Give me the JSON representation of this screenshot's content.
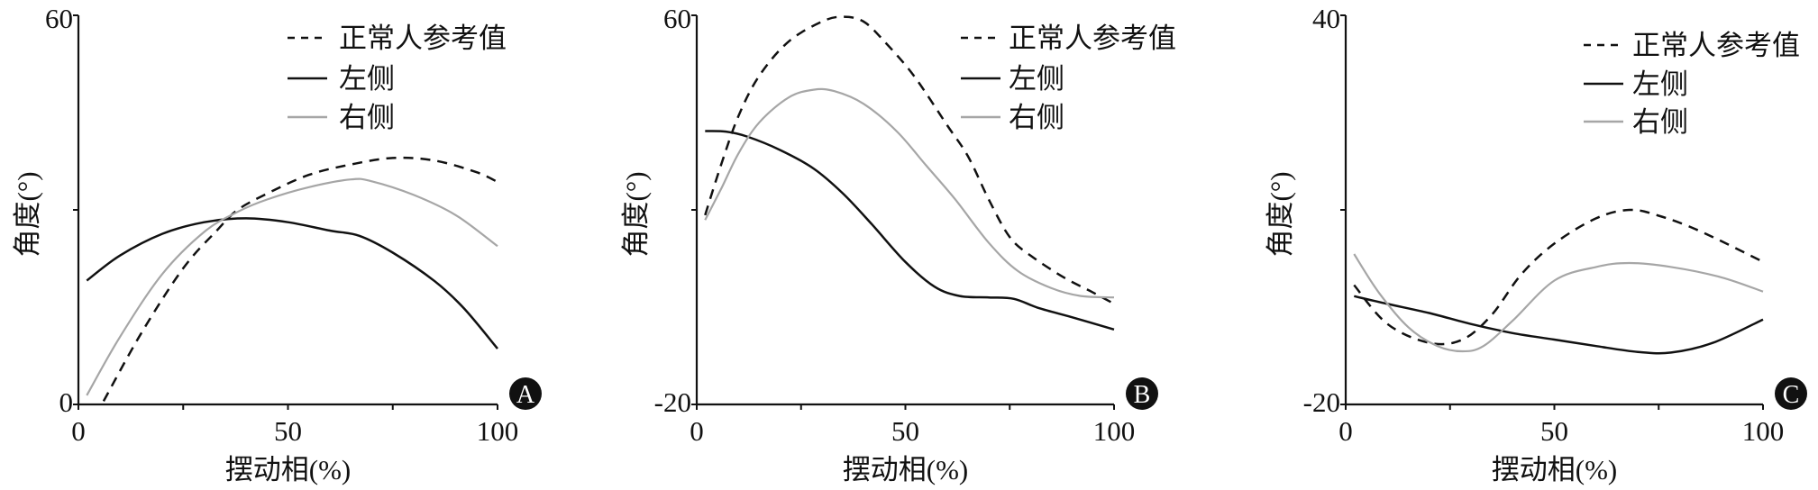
{
  "chart_data": [
    {
      "type": "line",
      "panel_label": "A",
      "xlabel": "摆动相(%)",
      "ylabel": "角度(°)",
      "xlim": [
        0,
        100
      ],
      "ylim": [
        0,
        60
      ],
      "xticks": [
        0,
        50,
        100
      ],
      "yticks": [
        0,
        60
      ],
      "grid": false,
      "legend_position": "top-right",
      "series": [
        {
          "name": "正常人参考值",
          "style": "dashed",
          "color": "#111111",
          "x": [
            6,
            15,
            25,
            33,
            38,
            45,
            55,
            65,
            75,
            85,
            95,
            100
          ],
          "y": [
            0.5,
            11,
            21,
            26.8,
            30,
            32.5,
            35.4,
            37,
            38,
            37.6,
            35.8,
            34.3
          ]
        },
        {
          "name": "左侧",
          "style": "solid",
          "color": "#111111",
          "x": [
            2,
            10,
            20,
            30,
            40,
            50,
            60,
            67,
            75,
            85,
            92,
            100
          ],
          "y": [
            19.1,
            23,
            26.3,
            28.1,
            28.7,
            28.1,
            26.8,
            26,
            23.4,
            19,
            14.8,
            8.6
          ]
        },
        {
          "name": "右侧",
          "style": "solid",
          "color": "#a6a6a6",
          "x": [
            2,
            10,
            20,
            30,
            38,
            45,
            55,
            65,
            70,
            80,
            90,
            100
          ],
          "y": [
            1.4,
            10.5,
            20.1,
            26.6,
            29.7,
            31.6,
            33.5,
            34.7,
            34.4,
            32.3,
            29.2,
            24.4
          ]
        }
      ]
    },
    {
      "type": "line",
      "panel_label": "B",
      "xlabel": "摆动相(%)",
      "ylabel": "角度(°)",
      "xlim": [
        0,
        100
      ],
      "ylim": [
        -20,
        60
      ],
      "xticks": [
        0,
        50,
        100
      ],
      "yticks": [
        -20,
        60
      ],
      "grid": false,
      "legend_position": "top-right",
      "series": [
        {
          "name": "正常人参考值",
          "style": "dashed",
          "color": "#111111",
          "x": [
            2,
            6,
            10,
            15,
            22,
            30,
            35,
            40,
            45,
            52,
            60,
            65,
            70,
            75,
            80,
            88,
            95,
            100
          ],
          "y": [
            18.9,
            29.7,
            39.3,
            47.6,
            54.6,
            58.7,
            59.7,
            58.7,
            54.6,
            47.6,
            37.4,
            31,
            22.1,
            14.4,
            10.6,
            6.1,
            3,
            0.7
          ]
        },
        {
          "name": "左侧",
          "style": "solid",
          "color": "#111111",
          "x": [
            2,
            7,
            12,
            20,
            28,
            35,
            42,
            50,
            57,
            63,
            70,
            76,
            82,
            90,
            100
          ],
          "y": [
            36.2,
            36.1,
            35.1,
            32.3,
            28.5,
            23.4,
            17,
            9.3,
            4.2,
            2.3,
            2,
            1.7,
            -0.2,
            -2.1,
            -4.6
          ]
        },
        {
          "name": "右侧",
          "style": "solid",
          "color": "#a6a6a6",
          "x": [
            2,
            6,
            10,
            15,
            22,
            28,
            33,
            40,
            48,
            55,
            62,
            70,
            77,
            85,
            92,
            100
          ],
          "y": [
            17.9,
            24.6,
            31.6,
            38,
            43.1,
            44.7,
            44.4,
            41.8,
            36.1,
            29.1,
            22.1,
            13.2,
            7.4,
            3.9,
            2.3,
            2
          ]
        }
      ]
    },
    {
      "type": "line",
      "panel_label": "C",
      "xlabel": "摆动相(%)",
      "ylabel": "角度(°)",
      "xlim": [
        0,
        100
      ],
      "ylim": [
        -20,
        40
      ],
      "xticks": [
        0,
        50,
        100
      ],
      "yticks": [
        -20,
        40
      ],
      "grid": false,
      "legend_position": "top-right",
      "series": [
        {
          "name": "正常人参考值",
          "style": "dashed",
          "color": "#111111",
          "x": [
            2,
            10,
            20,
            28,
            35,
            42,
            50,
            60,
            68,
            75,
            85,
            100
          ],
          "y": [
            -1.6,
            -7.6,
            -10.5,
            -10,
            -6.2,
            0,
            4.8,
            8.7,
            10,
            9.1,
            6.7,
            2
          ]
        },
        {
          "name": "左侧",
          "style": "solid",
          "color": "#111111",
          "x": [
            2,
            10,
            20,
            30,
            40,
            50,
            60,
            70,
            78,
            88,
            100
          ],
          "y": [
            -3.3,
            -4.5,
            -5.9,
            -7.6,
            -9,
            -10,
            -11,
            -11.9,
            -12,
            -10.5,
            -6.9
          ]
        },
        {
          "name": "右侧",
          "style": "solid",
          "color": "#a6a6a6",
          "x": [
            2,
            8,
            15,
            22,
            28,
            33,
            40,
            50,
            60,
            68,
            78,
            90,
            100
          ],
          "y": [
            3.2,
            -2.8,
            -8.1,
            -11,
            -11.8,
            -11,
            -7.1,
            -0.9,
            1.2,
            1.8,
            1.2,
            -0.4,
            -2.6
          ]
        }
      ]
    }
  ]
}
